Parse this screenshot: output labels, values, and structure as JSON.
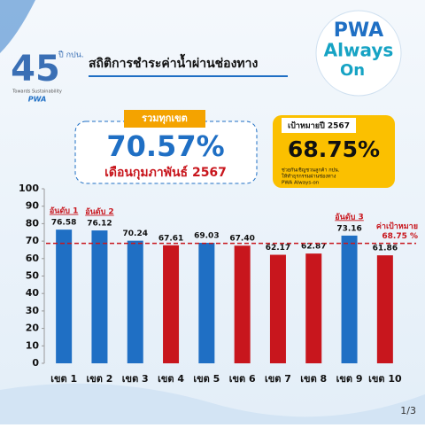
{
  "header": {
    "logo_number": "45",
    "logo_sub": "ปี กปน.",
    "logo_tag": "Towards Sustainability",
    "logo_brand": "PWA",
    "title": "สถิติการชำระค่าน้ำผ่านช่องทาง",
    "brand_top": "PWA",
    "brand_mid": "Always",
    "brand_bot": "On"
  },
  "summary": {
    "label": "รวมทุกเขต",
    "value": "70.57%",
    "period": "เดือนกุมภาพันธ์ 2567"
  },
  "goal": {
    "label": "เป้าหมายปี 2567",
    "value": "68.75%",
    "note": [
      "ช่วยกันเชิญชวนลูกค้า กปน.",
      "ให้ทำธุรกรรมผ่านช่องทาง",
      "PWA Always-on"
    ]
  },
  "chart_data": {
    "type": "bar",
    "categories": [
      "เขต 1",
      "เขต 2",
      "เขต 3",
      "เขต 4",
      "เขต 5",
      "เขต 6",
      "เขต 7",
      "เขต 8",
      "เขต 9",
      "เขต 10"
    ],
    "values": [
      76.58,
      76.12,
      70.24,
      67.61,
      69.03,
      67.4,
      62.17,
      62.87,
      73.16,
      61.86
    ],
    "value_labels": [
      "76.58",
      "76.12",
      "70.24",
      "67.61",
      "69.03",
      "67.40",
      "62.17",
      "62.87",
      "73.16",
      "61.86"
    ],
    "colors": [
      "#1f6fc4",
      "#1f6fc4",
      "#1f6fc4",
      "#c8161d",
      "#1f6fc4",
      "#c8161d",
      "#c8161d",
      "#c8161d",
      "#1f6fc4",
      "#c8161d"
    ],
    "rank_labels": [
      "อันดับ 1",
      "อันดับ 2",
      null,
      null,
      null,
      null,
      null,
      null,
      "อันดับ 3",
      null
    ],
    "target": {
      "value": 68.75,
      "label": "68.75 %"
    },
    "target_title": "ค่าเป้าหมาย",
    "target_color": "#c8161d",
    "ylim": [
      0,
      100
    ],
    "yticks": [
      0,
      10,
      20,
      30,
      40,
      50,
      60,
      70,
      80,
      90,
      100
    ]
  },
  "footer": {
    "page": "1/3"
  }
}
